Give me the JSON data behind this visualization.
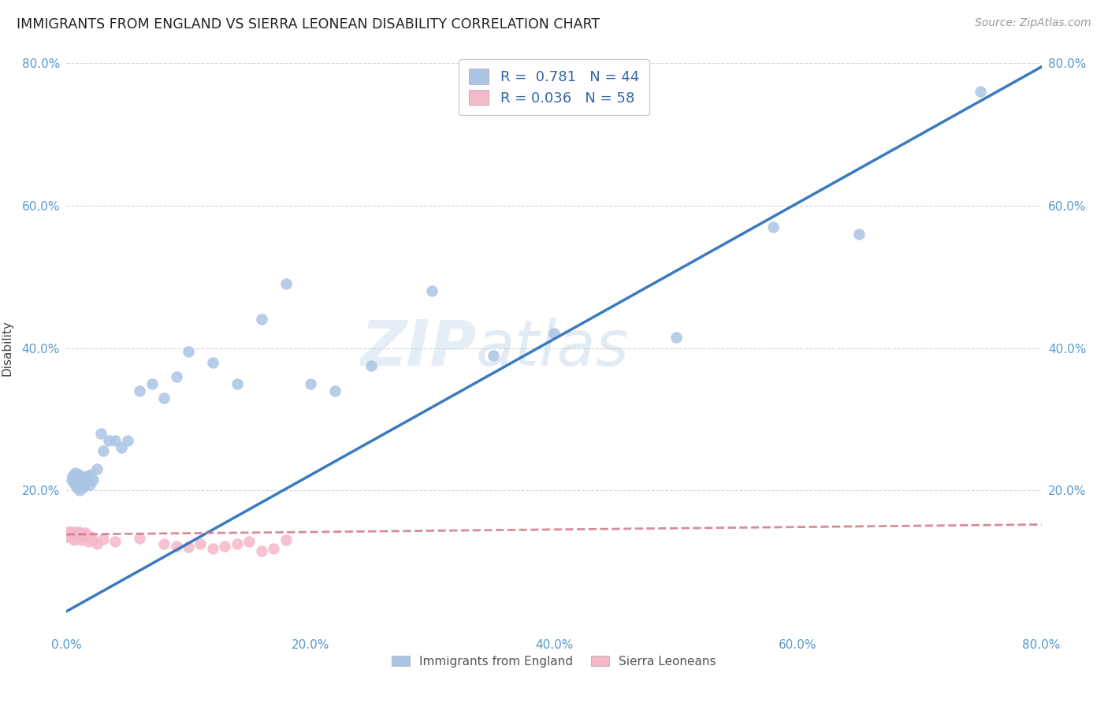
{
  "title": "IMMIGRANTS FROM ENGLAND VS SIERRA LEONEAN DISABILITY CORRELATION CHART",
  "source": "Source: ZipAtlas.com",
  "ylabel": "Disability",
  "england_R": 0.781,
  "england_N": 44,
  "sierra_R": 0.036,
  "sierra_N": 58,
  "england_color": "#aac4e4",
  "england_line_color": "#3a7abf",
  "sierra_color": "#f5b8c8",
  "sierra_line_color": "#d07888",
  "watermark_zip": "ZIP",
  "watermark_atlas": "atlas",
  "legend_england_label": "Immigrants from England",
  "legend_sierra_label": "Sierra Leoneans",
  "xlim": [
    0.0,
    0.8
  ],
  "ylim": [
    0.0,
    0.8
  ],
  "england_scatter_x": [
    0.004,
    0.005,
    0.006,
    0.007,
    0.008,
    0.009,
    0.01,
    0.011,
    0.012,
    0.013,
    0.014,
    0.015,
    0.016,
    0.017,
    0.018,
    0.019,
    0.02,
    0.022,
    0.025,
    0.028,
    0.03,
    0.035,
    0.04,
    0.045,
    0.05,
    0.06,
    0.07,
    0.08,
    0.09,
    0.1,
    0.12,
    0.14,
    0.16,
    0.18,
    0.2,
    0.22,
    0.25,
    0.3,
    0.35,
    0.4,
    0.5,
    0.58,
    0.65,
    0.75
  ],
  "england_scatter_y": [
    0.215,
    0.22,
    0.21,
    0.225,
    0.205,
    0.218,
    0.222,
    0.2,
    0.215,
    0.21,
    0.205,
    0.218,
    0.212,
    0.22,
    0.215,
    0.208,
    0.222,
    0.215,
    0.23,
    0.28,
    0.255,
    0.27,
    0.27,
    0.26,
    0.27,
    0.34,
    0.35,
    0.33,
    0.36,
    0.395,
    0.38,
    0.35,
    0.44,
    0.49,
    0.35,
    0.34,
    0.375,
    0.48,
    0.39,
    0.42,
    0.415,
    0.57,
    0.56,
    0.76
  ],
  "sierra_scatter_x": [
    0.001,
    0.001,
    0.002,
    0.002,
    0.002,
    0.003,
    0.003,
    0.003,
    0.003,
    0.004,
    0.004,
    0.004,
    0.004,
    0.005,
    0.005,
    0.005,
    0.005,
    0.006,
    0.006,
    0.006,
    0.006,
    0.007,
    0.007,
    0.007,
    0.008,
    0.008,
    0.008,
    0.009,
    0.009,
    0.01,
    0.01,
    0.011,
    0.011,
    0.012,
    0.012,
    0.013,
    0.014,
    0.015,
    0.016,
    0.017,
    0.018,
    0.02,
    0.022,
    0.025,
    0.03,
    0.04,
    0.06,
    0.08,
    0.1,
    0.12,
    0.14,
    0.16,
    0.18,
    0.13,
    0.15,
    0.17,
    0.11,
    0.09
  ],
  "sierra_scatter_y": [
    0.135,
    0.14,
    0.138,
    0.142,
    0.136,
    0.14,
    0.138,
    0.135,
    0.142,
    0.138,
    0.14,
    0.136,
    0.142,
    0.138,
    0.14,
    0.135,
    0.142,
    0.138,
    0.14,
    0.136,
    0.13,
    0.138,
    0.142,
    0.136,
    0.14,
    0.138,
    0.135,
    0.14,
    0.138,
    0.136,
    0.142,
    0.138,
    0.14,
    0.136,
    0.13,
    0.138,
    0.135,
    0.14,
    0.138,
    0.136,
    0.128,
    0.135,
    0.13,
    0.125,
    0.132,
    0.128,
    0.133,
    0.125,
    0.12,
    0.118,
    0.125,
    0.115,
    0.13,
    0.122,
    0.128,
    0.118,
    0.125,
    0.122
  ],
  "eng_line_x0": 0.0,
  "eng_line_y0": 0.03,
  "eng_line_x1": 0.8,
  "eng_line_y1": 0.795,
  "sier_line_x0": 0.0,
  "sier_line_y0": 0.138,
  "sier_line_x1": 0.8,
  "sier_line_y1": 0.152
}
